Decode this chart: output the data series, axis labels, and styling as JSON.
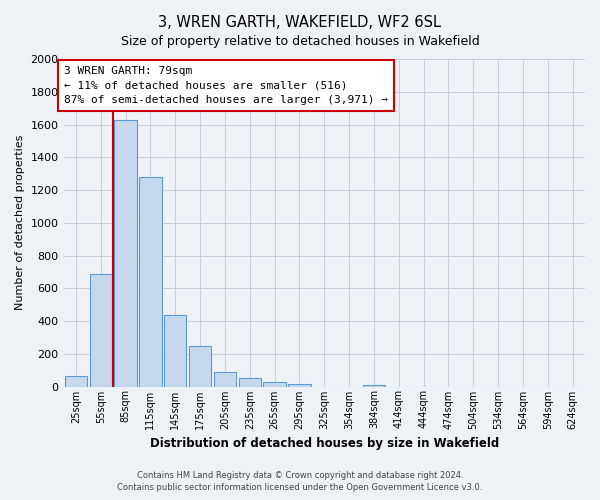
{
  "title": "3, WREN GARTH, WAKEFIELD, WF2 6SL",
  "subtitle": "Size of property relative to detached houses in Wakefield",
  "xlabel": "Distribution of detached houses by size in Wakefield",
  "ylabel": "Number of detached properties",
  "bar_labels": [
    "25sqm",
    "55sqm",
    "85sqm",
    "115sqm",
    "145sqm",
    "175sqm",
    "205sqm",
    "235sqm",
    "265sqm",
    "295sqm",
    "325sqm",
    "354sqm",
    "384sqm",
    "414sqm",
    "444sqm",
    "474sqm",
    "504sqm",
    "534sqm",
    "564sqm",
    "594sqm",
    "624sqm"
  ],
  "bar_values": [
    65,
    690,
    1630,
    1280,
    435,
    250,
    87,
    52,
    30,
    18,
    0,
    0,
    12,
    0,
    0,
    0,
    0,
    0,
    0,
    0,
    0
  ],
  "bar_color": "#c5d8ed",
  "bar_edge_color": "#5b9bd5",
  "vline_color": "#cc0000",
  "annotation_text_line1": "3 WREN GARTH: 79sqm",
  "annotation_text_line2": "← 11% of detached houses are smaller (516)",
  "annotation_text_line3": "87% of semi-detached houses are larger (3,971) →",
  "annotation_box_color": "#ffffff",
  "annotation_border_color": "#cc0000",
  "ylim": [
    0,
    2000
  ],
  "yticks": [
    0,
    200,
    400,
    600,
    800,
    1000,
    1200,
    1400,
    1600,
    1800,
    2000
  ],
  "footer_line1": "Contains HM Land Registry data © Crown copyright and database right 2024.",
  "footer_line2": "Contains public sector information licensed under the Open Government Licence v3.0.",
  "bg_color": "#eef2f7",
  "plot_bg_color": "#eef2f7",
  "grid_color": "#c5cfe0"
}
